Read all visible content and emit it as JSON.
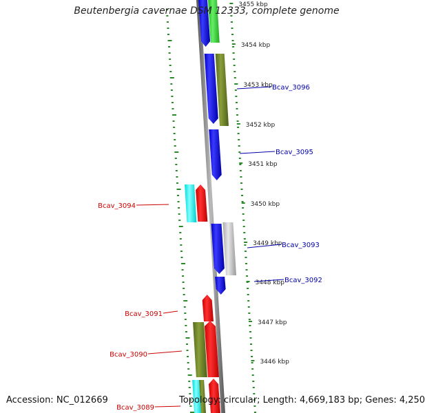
{
  "title": "Beutenbergia cavernae DSM 12333, complete genome",
  "footer": {
    "accession": "Accession: NC_012669",
    "topology": "Topology: circular; Length: 4,669,183 bp; Genes: 4,250"
  },
  "colors": {
    "backbone": "#777777",
    "tick": "#2a8a2a",
    "label_left": "#cc0000",
    "label_right": "#0000aa"
  },
  "scale_ticks": [
    "3455 kbp",
    "3454 kbp",
    "3453 kbp",
    "3452 kbp",
    "3451 kbp",
    "3450 kbp",
    "3449 kbp",
    "3448 kbp",
    "3447 kbp",
    "3446 kbp"
  ],
  "gene_labels_left": [
    "Bcav_3094",
    "Bcav_3091",
    "Bcav_3090",
    "Bcav_3089"
  ],
  "gene_labels_right": [
    "Bcav_3096",
    "Bcav_3095",
    "Bcav_3093",
    "Bcav_3092"
  ]
}
